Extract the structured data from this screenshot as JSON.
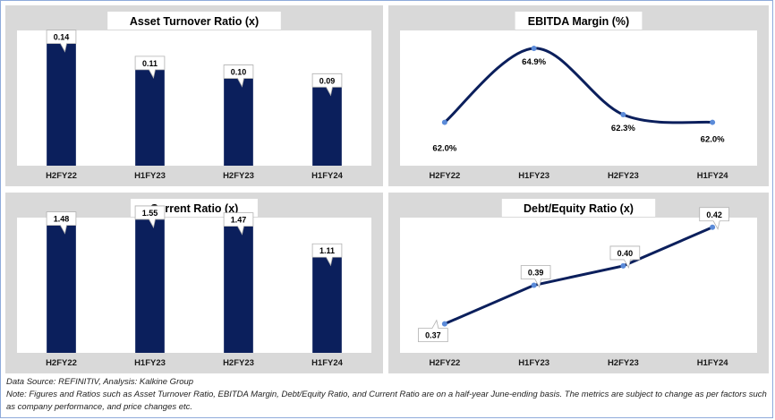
{
  "chart_data": [
    {
      "type": "bar",
      "title": "Asset Turnover Ratio (x)",
      "categories": [
        "H2FY22",
        "H1FY23",
        "H2FY23",
        "H1FY24"
      ],
      "values": [
        0.14,
        0.11,
        0.1,
        0.09
      ],
      "labels": [
        "0.14",
        "0.11",
        "0.10",
        "0.09"
      ],
      "ylim": [
        0,
        0.155
      ],
      "color": "#0b1f5c"
    },
    {
      "type": "line",
      "title": "EBITDA Margin (%)",
      "categories": [
        "H2FY22",
        "H1FY23",
        "H2FY23",
        "H1FY24"
      ],
      "values": [
        62.0,
        64.9,
        62.3,
        62.0
      ],
      "labels": [
        "62.0%",
        "64.9%",
        "62.3%",
        "62.0%"
      ],
      "ylim": [
        60.3,
        65.6
      ],
      "color": "#0b1f5c",
      "marker_color": "#5b8bd9",
      "smooth": true
    },
    {
      "type": "bar",
      "title": "Current Ratio (x)",
      "categories": [
        "H2FY22",
        "H1FY23",
        "H2FY23",
        "H1FY24"
      ],
      "values": [
        1.48,
        1.55,
        1.47,
        1.11
      ],
      "labels": [
        "1.48",
        "1.55",
        "1.47",
        "1.11"
      ],
      "ylim": [
        0,
        1.57
      ],
      "color": "#0b1f5c"
    },
    {
      "type": "line",
      "title": "Debt/Equity Ratio (x)",
      "categories": [
        "H2FY22",
        "H1FY23",
        "H2FY23",
        "H1FY24"
      ],
      "values": [
        0.37,
        0.39,
        0.4,
        0.42
      ],
      "labels": [
        "0.37",
        "0.39",
        "0.40",
        "0.42"
      ],
      "ylim": [
        0.355,
        0.425
      ],
      "color": "#0b1f5c",
      "marker_color": "#5b8bd9",
      "smooth": false
    }
  ],
  "footer": {
    "source": "Data Source: REFINITIV, Analysis: Kalkine Group",
    "note": "Note: Figures and Ratios such as Asset Turnover Ratio, EBITDA Margin, Debt/Equity Ratio, and Current Ratio  are on a half-year June-ending basis. The metrics are subject to change as per factors such as company performance, and price changes etc."
  }
}
